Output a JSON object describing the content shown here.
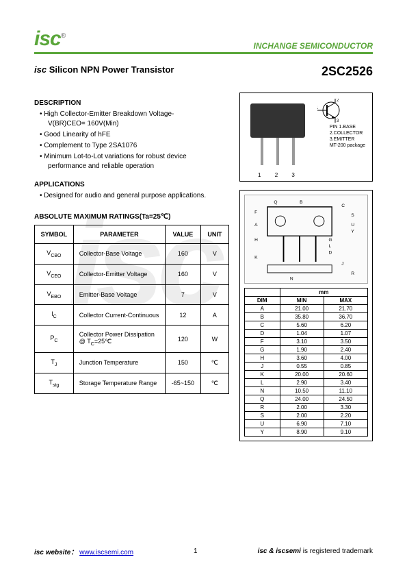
{
  "header": {
    "logo": "isc",
    "logo_mark": "®",
    "company": "INCHANGE SEMICONDUCTOR"
  },
  "title": {
    "prefix": "isc",
    "main": "Silicon NPN Power Transistor",
    "part": "2SC2526"
  },
  "description": {
    "heading": "DESCRIPTION",
    "items": [
      "High Collector-Emitter Breakdown Voltage-",
      "V(BR)CEO= 160V(Min)",
      "Good Linearity of hFE",
      "Complement to Type 2SA1076",
      "Minimum Lot-to-Lot variations for robust device",
      "performance and reliable operation"
    ]
  },
  "applications": {
    "heading": "APPLICATIONS",
    "items": [
      "Designed for audio and general purpose applications."
    ]
  },
  "ratings": {
    "heading": "ABSOLUTE MAXIMUM RATINGS(Ta=25℃)",
    "columns": [
      "SYMBOL",
      "PARAMETER",
      "VALUE",
      "UNIT"
    ],
    "rows": [
      {
        "sym": "VCBO",
        "param": "Collector-Base Voltage",
        "val": "160",
        "unit": "V"
      },
      {
        "sym": "VCEO",
        "param": "Collector-Emitter Voltage",
        "val": "160",
        "unit": "V"
      },
      {
        "sym": "VEBO",
        "param": "Emitter-Base Voltage",
        "val": "7",
        "unit": "V"
      },
      {
        "sym": "IC",
        "param": "Collector Current-Continuous",
        "val": "12",
        "unit": "A"
      },
      {
        "sym": "PC",
        "param": "Collector Power Dissipation\n@ TC=25℃",
        "val": "120",
        "unit": "W"
      },
      {
        "sym": "TJ",
        "param": "Junction Temperature",
        "val": "150",
        "unit": "℃"
      },
      {
        "sym": "Tstg",
        "param": "Storage Temperature Range",
        "val": "-65~150",
        "unit": "℃"
      }
    ]
  },
  "pinout": {
    "pins": [
      "1",
      "2",
      "3"
    ],
    "labels": [
      "PIN 1.BASE",
      "2.COLLECTOR",
      "3.EMITTER",
      "MT-200 package"
    ],
    "symbol_labels": {
      "1": "1",
      "2": "2",
      "3": "3"
    }
  },
  "dimensions": {
    "unit_label": "mm",
    "columns": [
      "DIM",
      "MIN",
      "MAX"
    ],
    "rows": [
      [
        "A",
        "21.00",
        "21.70"
      ],
      [
        "B",
        "35.80",
        "36.70"
      ],
      [
        "C",
        "5.60",
        "6.20"
      ],
      [
        "D",
        "1.04",
        "1.07"
      ],
      [
        "F",
        "3.10",
        "3.50"
      ],
      [
        "G",
        "1.90",
        "2.40"
      ],
      [
        "H",
        "3.60",
        "4.00"
      ],
      [
        "J",
        "0.55",
        "0.85"
      ],
      [
        "K",
        "20.00",
        "20.60"
      ],
      [
        "L",
        "2.90",
        "3.40"
      ],
      [
        "N",
        "10.50",
        "11.10"
      ],
      [
        "Q",
        "24.00",
        "24.50"
      ],
      [
        "R",
        "2.00",
        "3.30"
      ],
      [
        "S",
        "2.00",
        "2.20"
      ],
      [
        "U",
        "6.90",
        "7.10"
      ],
      [
        "Y",
        "8.90",
        "9.10"
      ]
    ]
  },
  "footer": {
    "left_prefix": "isc",
    "left_label": "website：",
    "url": "www.iscsemi.com",
    "page": "1",
    "right_prefix": "isc & iscsemi",
    "right_text": "is registered trademark"
  },
  "colors": {
    "accent": "#5aa63a",
    "text": "#000000",
    "link": "#0000cc",
    "watermark": "#ededed"
  }
}
